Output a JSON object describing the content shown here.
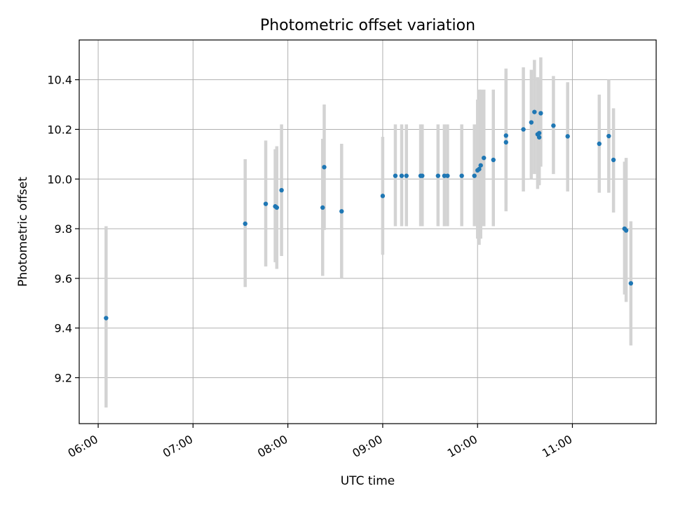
{
  "chart_data": {
    "type": "scatter",
    "title": "Photometric offset variation",
    "xlabel": "UTC time",
    "ylabel": "Photometric offset",
    "x_ticks": [
      "06:00",
      "07:00",
      "08:00",
      "09:00",
      "10:00",
      "11:00"
    ],
    "y_ticks": [
      "9.2",
      "9.4",
      "9.6",
      "9.8",
      "10.0",
      "10.2",
      "10.4"
    ],
    "xlim": [
      "05:48",
      "11:53"
    ],
    "ylim": [
      9.015,
      10.56
    ],
    "grid": true,
    "error_bar_color": "#d3d3d3",
    "point_color": "#1f77b4",
    "points": [
      {
        "x": "06:05",
        "y": 9.44,
        "ylo": 9.08,
        "yhi": 9.81
      },
      {
        "x": "07:33",
        "y": 9.82,
        "ylo": 9.565,
        "yhi": 10.08
      },
      {
        "x": "07:46",
        "y": 9.9,
        "ylo": 9.648,
        "yhi": 10.155
      },
      {
        "x": "07:52",
        "y": 9.89,
        "ylo": 9.665,
        "yhi": 10.12
      },
      {
        "x": "07:53",
        "y": 9.885,
        "ylo": 9.638,
        "yhi": 10.132
      },
      {
        "x": "07:56",
        "y": 9.955,
        "ylo": 9.69,
        "yhi": 10.22
      },
      {
        "x": "08:22",
        "y": 9.885,
        "ylo": 9.61,
        "yhi": 10.162
      },
      {
        "x": "08:23",
        "y": 10.048,
        "ylo": 9.795,
        "yhi": 10.3
      },
      {
        "x": "08:34",
        "y": 9.87,
        "ylo": 9.6,
        "yhi": 10.142
      },
      {
        "x": "09:00",
        "y": 9.932,
        "ylo": 9.695,
        "yhi": 10.17
      },
      {
        "x": "09:08",
        "y": 10.013,
        "ylo": 9.81,
        "yhi": 10.22
      },
      {
        "x": "09:12",
        "y": 10.013,
        "ylo": 9.81,
        "yhi": 10.22
      },
      {
        "x": "09:15",
        "y": 10.013,
        "ylo": 9.81,
        "yhi": 10.22
      },
      {
        "x": "09:24",
        "y": 10.013,
        "ylo": 9.81,
        "yhi": 10.22
      },
      {
        "x": "09:25",
        "y": 10.013,
        "ylo": 9.81,
        "yhi": 10.22
      },
      {
        "x": "09:35",
        "y": 10.013,
        "ylo": 9.81,
        "yhi": 10.22
      },
      {
        "x": "09:39",
        "y": 10.013,
        "ylo": 9.81,
        "yhi": 10.22
      },
      {
        "x": "09:41",
        "y": 10.013,
        "ylo": 9.81,
        "yhi": 10.22
      },
      {
        "x": "09:50",
        "y": 10.013,
        "ylo": 9.81,
        "yhi": 10.22
      },
      {
        "x": "09:58",
        "y": 10.013,
        "ylo": 9.81,
        "yhi": 10.22
      },
      {
        "x": "10:00",
        "y": 10.035,
        "ylo": 9.76,
        "yhi": 10.32
      },
      {
        "x": "10:01",
        "y": 10.04,
        "ylo": 9.735,
        "yhi": 10.36
      },
      {
        "x": "10:02",
        "y": 10.055,
        "ylo": 9.76,
        "yhi": 10.36
      },
      {
        "x": "10:04",
        "y": 10.085,
        "ylo": 9.81,
        "yhi": 10.36
      },
      {
        "x": "10:10",
        "y": 10.077,
        "ylo": 9.81,
        "yhi": 10.36
      },
      {
        "x": "10:18",
        "y": 10.175,
        "ylo": 9.9,
        "yhi": 10.445
      },
      {
        "x": "10:18",
        "y": 10.148,
        "ylo": 9.87,
        "yhi": 10.425
      },
      {
        "x": "10:29",
        "y": 10.2,
        "ylo": 9.95,
        "yhi": 10.45
      },
      {
        "x": "10:34",
        "y": 10.228,
        "ylo": 10.0,
        "yhi": 10.44
      },
      {
        "x": "10:36",
        "y": 10.27,
        "ylo": 10.02,
        "yhi": 10.48
      },
      {
        "x": "10:38",
        "y": 10.18,
        "ylo": 9.96,
        "yhi": 10.41
      },
      {
        "x": "10:39",
        "y": 10.185,
        "ylo": 9.975,
        "yhi": 10.4
      },
      {
        "x": "10:39",
        "y": 10.168,
        "ylo": 9.98,
        "yhi": 10.36
      },
      {
        "x": "10:40",
        "y": 10.265,
        "ylo": 10.05,
        "yhi": 10.49
      },
      {
        "x": "10:48",
        "y": 10.215,
        "ylo": 10.02,
        "yhi": 10.415
      },
      {
        "x": "10:57",
        "y": 10.172,
        "ylo": 9.95,
        "yhi": 10.39
      },
      {
        "x": "11:17",
        "y": 10.142,
        "ylo": 9.945,
        "yhi": 10.34
      },
      {
        "x": "11:23",
        "y": 10.173,
        "ylo": 9.945,
        "yhi": 10.4
      },
      {
        "x": "11:26",
        "y": 10.077,
        "ylo": 9.865,
        "yhi": 10.285
      },
      {
        "x": "11:33",
        "y": 9.8,
        "ylo": 9.535,
        "yhi": 10.07
      },
      {
        "x": "11:34",
        "y": 9.793,
        "ylo": 9.505,
        "yhi": 10.085
      },
      {
        "x": "11:37",
        "y": 9.58,
        "ylo": 9.33,
        "yhi": 9.83
      }
    ]
  }
}
